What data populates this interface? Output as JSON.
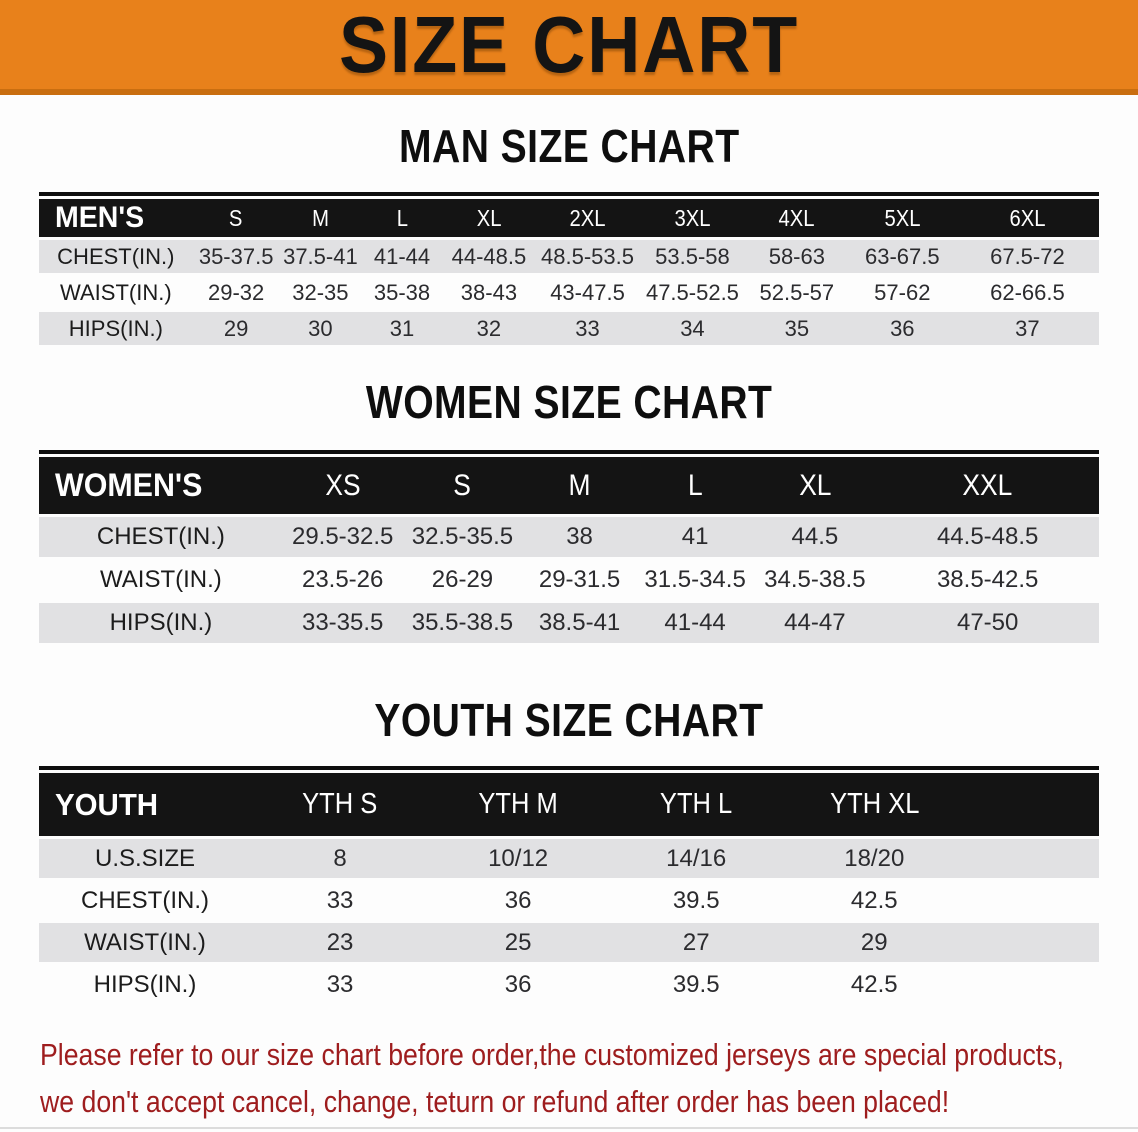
{
  "banner": {
    "title": "SIZE CHART"
  },
  "colors": {
    "banner_orange": "#E8811B",
    "banner_edge_orange": "#C96E10",
    "table_header_black": "#141414",
    "row_gray": "#E1E1E3",
    "footer_red": "#9E1D1E"
  },
  "sections": [
    {
      "title": "MAN SIZE CHART",
      "table": {
        "header": [
          "MEN'S",
          "S",
          "M",
          "L",
          "XL",
          "2XL",
          "3XL",
          "4XL",
          "5XL",
          "6XL"
        ],
        "rows": [
          {
            "label": "CHEST(IN.)",
            "values": [
              "35-37.5",
              "37.5-41",
              "41-44",
              "44-48.5",
              "48.5-53.5",
              "53.5-58",
              "58-63",
              "63-67.5",
              "67.5-72"
            ]
          },
          {
            "label": "WAIST(IN.)",
            "values": [
              "29-32",
              "32-35",
              "35-38",
              "38-43",
              "43-47.5",
              "47.5-52.5",
              "52.5-57",
              "57-62",
              "62-66.5"
            ]
          },
          {
            "label": "HIPS(IN.)",
            "values": [
              "29",
              "30",
              "31",
              "32",
              "33",
              "34",
              "35",
              "36",
              "37"
            ]
          }
        ]
      }
    },
    {
      "title": "WOMEN SIZE CHART",
      "table": {
        "header": [
          "WOMEN'S",
          "XS",
          "S",
          "M",
          "L",
          "XL",
          "XXL"
        ],
        "rows": [
          {
            "label": "CHEST(IN.)",
            "values": [
              "29.5-32.5",
              "32.5-35.5",
              "38",
              "41",
              "44.5",
              "44.5-48.5"
            ]
          },
          {
            "label": "WAIST(IN.)",
            "values": [
              "23.5-26",
              "26-29",
              "29-31.5",
              "31.5-34.5",
              "34.5-38.5",
              "38.5-42.5"
            ]
          },
          {
            "label": "HIPS(IN.)",
            "values": [
              "33-35.5",
              "35.5-38.5",
              "38.5-41",
              "41-44",
              "44-47",
              "47-50"
            ]
          }
        ]
      }
    },
    {
      "title": "YOUTH SIZE CHART",
      "table": {
        "header": [
          "YOUTH",
          "YTH S",
          "YTH M",
          "YTH L",
          "YTH XL"
        ],
        "rows": [
          {
            "label": "U.S.SIZE",
            "values": [
              "8",
              "10/12",
              "14/16",
              "18/20"
            ]
          },
          {
            "label": "CHEST(IN.)",
            "values": [
              "33",
              "36",
              "39.5",
              "42.5"
            ]
          },
          {
            "label": "WAIST(IN.)",
            "values": [
              "23",
              "25",
              "27",
              "29"
            ]
          },
          {
            "label": "HIPS(IN.)",
            "values": [
              "33",
              "36",
              "39.5",
              "42.5"
            ]
          }
        ]
      }
    }
  ],
  "footer": {
    "line1": "Please refer to our size chart before order,the customized jerseys are special products,",
    "line2": "we don't accept cancel, change, teturn or refund after order has been placed!"
  }
}
